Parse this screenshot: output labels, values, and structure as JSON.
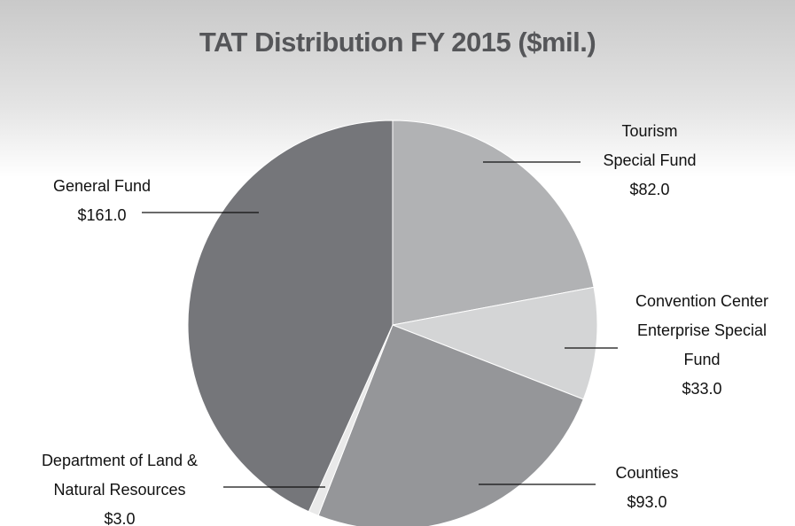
{
  "chart_data": {
    "type": "pie",
    "title": "TAT Distribution FY 2015 ($mil.)",
    "categories": [
      "Tourism Special Fund",
      "Convention Center Enterprise Special Fund",
      "Counties",
      "Department of Land & Natural Resources",
      "General Fund"
    ],
    "values": [
      82,
      33,
      93,
      3,
      161
    ],
    "value_labels": [
      "$82.0",
      "$33.0",
      "$93.0",
      "$3.0",
      "$161.0"
    ],
    "colors": [
      "#b1b2b4",
      "#d4d5d6",
      "#959699",
      "#e9e9e9",
      "#75767a"
    ]
  }
}
